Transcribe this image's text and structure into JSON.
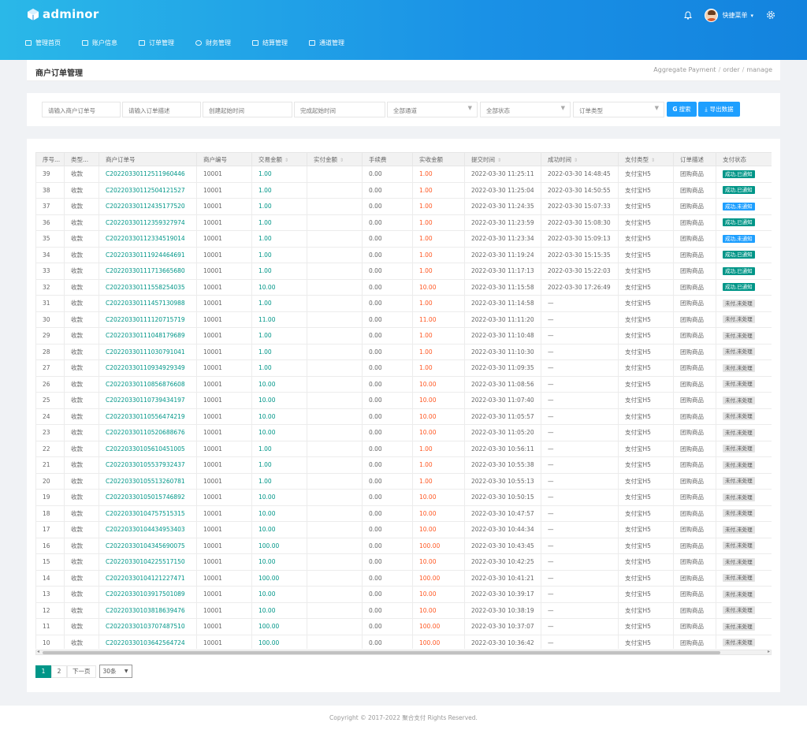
{
  "app": {
    "logo": "adminor"
  },
  "header": {
    "user": "快捷菜单",
    "nav": [
      {
        "label": "管理首页",
        "icon": "home-icon"
      },
      {
        "label": "账户信息",
        "icon": "user-icon"
      },
      {
        "label": "订单管理",
        "icon": "order-icon"
      },
      {
        "label": "财务管理",
        "icon": "finance-icon"
      },
      {
        "label": "结算管理",
        "icon": "settle-icon"
      },
      {
        "label": "通道管理",
        "icon": "channel-icon"
      }
    ]
  },
  "page": {
    "title": "商户订单管理",
    "breadcrumb": [
      "Aggregate Payment",
      "order",
      "manage"
    ]
  },
  "filters": {
    "order_no": "请输入商户订单号",
    "desc": "请输入订单描述",
    "created": "创建起始时间",
    "finished": "完成起始时间",
    "channel": "全部通道",
    "status": "全部状态",
    "type": "订单类型",
    "search": "搜索",
    "export": "导出数据"
  },
  "table": {
    "columns": [
      "序号...",
      "类型...",
      "商户订单号",
      "商户编号",
      "交易金额",
      "实付金额",
      "手续费",
      "实收金额",
      "提交时间",
      "成功时间",
      "支付类型",
      "订单描述",
      "支付状态"
    ],
    "rows": [
      [
        "39",
        "收款",
        "C20220330112511960446",
        "10001",
        "1.00",
        "",
        "0.00",
        "1.00",
        "2022-03-30 11:25:11",
        "2022-03-30 14:48:45",
        "支付宝H5",
        "团购商品",
        "成功,已通知"
      ],
      [
        "38",
        "收款",
        "C20220330112504121527",
        "10001",
        "1.00",
        "",
        "0.00",
        "1.00",
        "2022-03-30 11:25:04",
        "2022-03-30 14:50:55",
        "支付宝H5",
        "团购商品",
        "成功,已通知"
      ],
      [
        "37",
        "收款",
        "C20220330112435177520",
        "10001",
        "1.00",
        "",
        "0.00",
        "1.00",
        "2022-03-30 11:24:35",
        "2022-03-30 15:07:33",
        "支付宝H5",
        "团购商品",
        "成功,未通知"
      ],
      [
        "36",
        "收款",
        "C20220330112359327974",
        "10001",
        "1.00",
        "",
        "0.00",
        "1.00",
        "2022-03-30 11:23:59",
        "2022-03-30 15:08:30",
        "支付宝H5",
        "团购商品",
        "成功,已通知"
      ],
      [
        "35",
        "收款",
        "C20220330112334519014",
        "10001",
        "1.00",
        "",
        "0.00",
        "1.00",
        "2022-03-30 11:23:34",
        "2022-03-30 15:09:13",
        "支付宝H5",
        "团购商品",
        "成功,未通知"
      ],
      [
        "34",
        "收款",
        "C20220330111924464691",
        "10001",
        "1.00",
        "",
        "0.00",
        "1.00",
        "2022-03-30 11:19:24",
        "2022-03-30 15:15:35",
        "支付宝H5",
        "团购商品",
        "成功,已通知"
      ],
      [
        "33",
        "收款",
        "C20220330111713665680",
        "10001",
        "1.00",
        "",
        "0.00",
        "1.00",
        "2022-03-30 11:17:13",
        "2022-03-30 15:22:03",
        "支付宝H5",
        "团购商品",
        "成功,已通知"
      ],
      [
        "32",
        "收款",
        "C20220330111558254035",
        "10001",
        "10.00",
        "",
        "0.00",
        "10.00",
        "2022-03-30 11:15:58",
        "2022-03-30 17:26:49",
        "支付宝H5",
        "团购商品",
        "成功,已通知"
      ],
      [
        "31",
        "收款",
        "C20220330111457130988",
        "10001",
        "1.00",
        "",
        "0.00",
        "1.00",
        "2022-03-30 11:14:58",
        "—",
        "支付宝H5",
        "团购商品",
        "未付,未处理"
      ],
      [
        "30",
        "收款",
        "C20220330111120715719",
        "10001",
        "11.00",
        "",
        "0.00",
        "11.00",
        "2022-03-30 11:11:20",
        "—",
        "支付宝H5",
        "团购商品",
        "未付,未处理"
      ],
      [
        "29",
        "收款",
        "C20220330111048179689",
        "10001",
        "1.00",
        "",
        "0.00",
        "1.00",
        "2022-03-30 11:10:48",
        "—",
        "支付宝H5",
        "团购商品",
        "未付,未处理"
      ],
      [
        "28",
        "收款",
        "C20220330111030791041",
        "10001",
        "1.00",
        "",
        "0.00",
        "1.00",
        "2022-03-30 11:10:30",
        "—",
        "支付宝H5",
        "团购商品",
        "未付,未处理"
      ],
      [
        "27",
        "收款",
        "C20220330110934929349",
        "10001",
        "1.00",
        "",
        "0.00",
        "1.00",
        "2022-03-30 11:09:35",
        "—",
        "支付宝H5",
        "团购商品",
        "未付,未处理"
      ],
      [
        "26",
        "收款",
        "C20220330110856876608",
        "10001",
        "10.00",
        "",
        "0.00",
        "10.00",
        "2022-03-30 11:08:56",
        "—",
        "支付宝H5",
        "团购商品",
        "未付,未处理"
      ],
      [
        "25",
        "收款",
        "C20220330110739434197",
        "10001",
        "10.00",
        "",
        "0.00",
        "10.00",
        "2022-03-30 11:07:40",
        "—",
        "支付宝H5",
        "团购商品",
        "未付,未处理"
      ],
      [
        "24",
        "收款",
        "C20220330110556474219",
        "10001",
        "10.00",
        "",
        "0.00",
        "10.00",
        "2022-03-30 11:05:57",
        "—",
        "支付宝H5",
        "团购商品",
        "未付,未处理"
      ],
      [
        "23",
        "收款",
        "C20220330110520688676",
        "10001",
        "10.00",
        "",
        "0.00",
        "10.00",
        "2022-03-30 11:05:20",
        "—",
        "支付宝H5",
        "团购商品",
        "未付,未处理"
      ],
      [
        "22",
        "收款",
        "C20220330105610451005",
        "10001",
        "1.00",
        "",
        "0.00",
        "1.00",
        "2022-03-30 10:56:11",
        "—",
        "支付宝H5",
        "团购商品",
        "未付,未处理"
      ],
      [
        "21",
        "收款",
        "C20220330105537932437",
        "10001",
        "1.00",
        "",
        "0.00",
        "1.00",
        "2022-03-30 10:55:38",
        "—",
        "支付宝H5",
        "团购商品",
        "未付,未处理"
      ],
      [
        "20",
        "收款",
        "C20220330105513260781",
        "10001",
        "1.00",
        "",
        "0.00",
        "1.00",
        "2022-03-30 10:55:13",
        "—",
        "支付宝H5",
        "团购商品",
        "未付,未处理"
      ],
      [
        "19",
        "收款",
        "C20220330105015746892",
        "10001",
        "10.00",
        "",
        "0.00",
        "10.00",
        "2022-03-30 10:50:15",
        "—",
        "支付宝H5",
        "团购商品",
        "未付,未处理"
      ],
      [
        "18",
        "收款",
        "C20220330104757515315",
        "10001",
        "10.00",
        "",
        "0.00",
        "10.00",
        "2022-03-30 10:47:57",
        "—",
        "支付宝H5",
        "团购商品",
        "未付,未处理"
      ],
      [
        "17",
        "收款",
        "C20220330104434953403",
        "10001",
        "10.00",
        "",
        "0.00",
        "10.00",
        "2022-03-30 10:44:34",
        "—",
        "支付宝H5",
        "团购商品",
        "未付,未处理"
      ],
      [
        "16",
        "收款",
        "C20220330104345690075",
        "10001",
        "100.00",
        "",
        "0.00",
        "100.00",
        "2022-03-30 10:43:45",
        "—",
        "支付宝H5",
        "团购商品",
        "未付,未处理"
      ],
      [
        "15",
        "收款",
        "C20220330104225517150",
        "10001",
        "10.00",
        "",
        "0.00",
        "10.00",
        "2022-03-30 10:42:25",
        "—",
        "支付宝H5",
        "团购商品",
        "未付,未处理"
      ],
      [
        "14",
        "收款",
        "C20220330104121227471",
        "10001",
        "100.00",
        "",
        "0.00",
        "100.00",
        "2022-03-30 10:41:21",
        "—",
        "支付宝H5",
        "团购商品",
        "未付,未处理"
      ],
      [
        "13",
        "收款",
        "C20220330103917501089",
        "10001",
        "10.00",
        "",
        "0.00",
        "10.00",
        "2022-03-30 10:39:17",
        "—",
        "支付宝H5",
        "团购商品",
        "未付,未处理"
      ],
      [
        "12",
        "收款",
        "C20220330103818639476",
        "10001",
        "10.00",
        "",
        "0.00",
        "10.00",
        "2022-03-30 10:38:19",
        "—",
        "支付宝H5",
        "团购商品",
        "未付,未处理"
      ],
      [
        "11",
        "收款",
        "C20220330103707487510",
        "10001",
        "100.00",
        "",
        "0.00",
        "100.00",
        "2022-03-30 10:37:07",
        "—",
        "支付宝H5",
        "团购商品",
        "未付,未处理"
      ],
      [
        "10",
        "收款",
        "C20220330103642564724",
        "10001",
        "100.00",
        "",
        "0.00",
        "100.00",
        "2022-03-30 10:36:42",
        "—",
        "支付宝H5",
        "团购商品",
        "未付,未处理"
      ]
    ]
  },
  "pager": {
    "pages": [
      "1",
      "2"
    ],
    "next": "下一页",
    "per_page": "30条"
  },
  "footer": {
    "text": "Copyright © 2017-2022 聚合支付 Rights Reserved."
  }
}
